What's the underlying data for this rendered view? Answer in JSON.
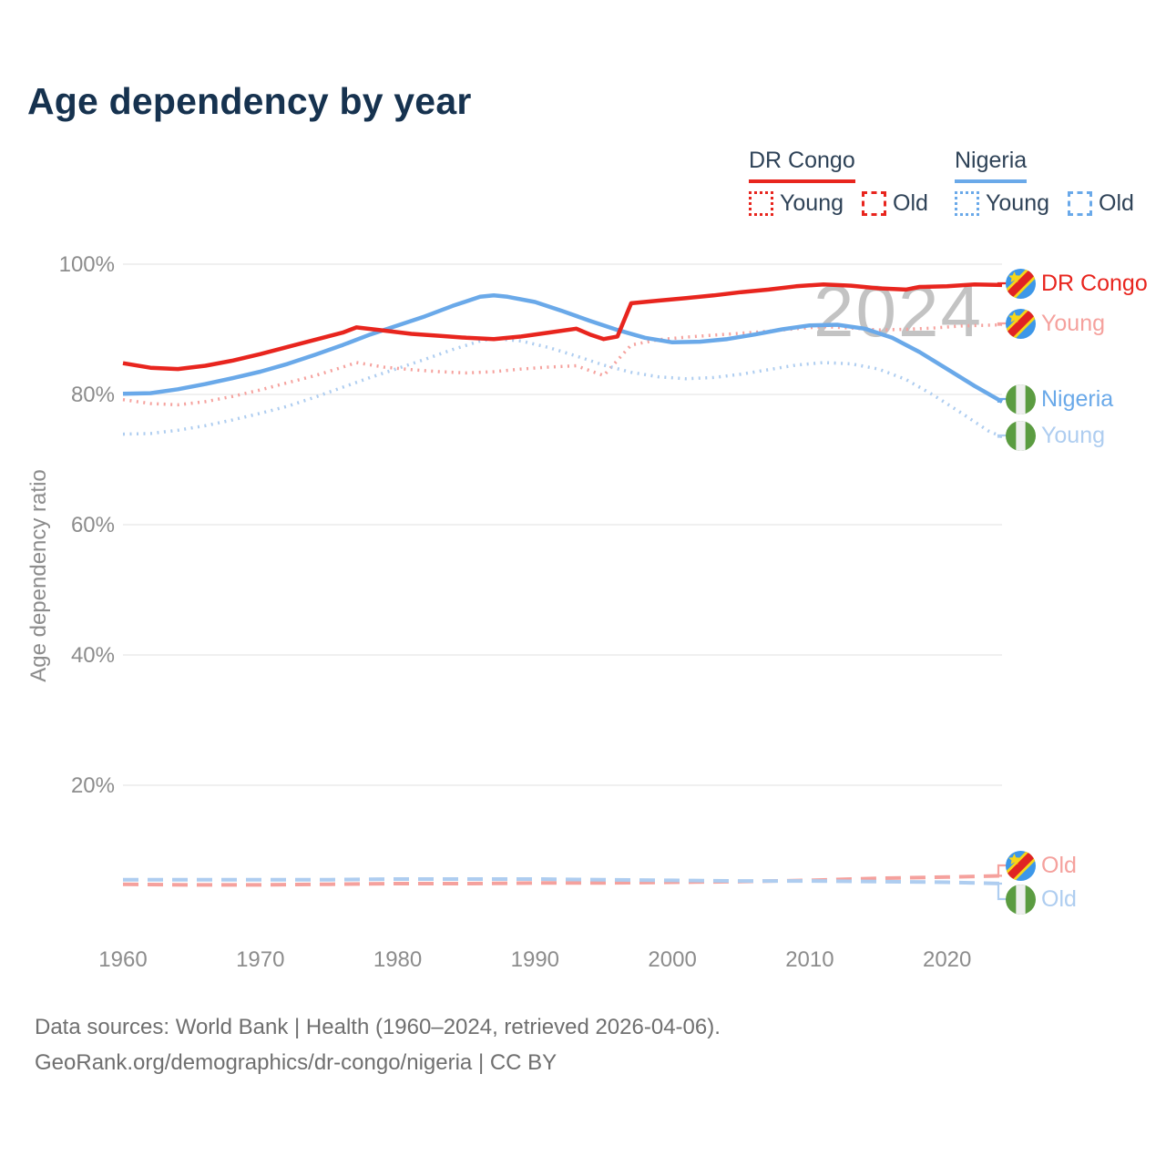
{
  "title": "Age dependency by year",
  "watermark": "2024",
  "colors": {
    "drc_solid": "#e8251e",
    "drc_light": "#f5a19d",
    "nigeria_solid": "#6aa9e9",
    "nigeria_light": "#aecdf0",
    "axis_text": "#8c8c8c",
    "gridline": "#ebebeb",
    "title_text": "#16324f",
    "legend_text": "#2e4257",
    "watermark_text": "#c3c3c3",
    "footer_text": "#6f6f6f"
  },
  "legend": {
    "groups": [
      {
        "name": "DR Congo",
        "color": "#e8251e",
        "items": [
          {
            "label": "Young",
            "style": "dotted"
          },
          {
            "label": "Old",
            "style": "dashed"
          }
        ]
      },
      {
        "name": "Nigeria",
        "color": "#6aa9e9",
        "items": [
          {
            "label": "Young",
            "style": "dotted"
          },
          {
            "label": "Old",
            "style": "dashed"
          }
        ]
      }
    ]
  },
  "right_labels": [
    {
      "label": "DR Congo",
      "flag": "dr-congo",
      "color": "#e8251e"
    },
    {
      "label": "Young",
      "flag": "dr-congo",
      "color": "#f5a19d"
    },
    {
      "label": "Nigeria",
      "flag": "nigeria",
      "color": "#6aa9e9"
    },
    {
      "label": "Young",
      "flag": "nigeria",
      "color": "#aecdf0"
    },
    {
      "label": "Old",
      "flag": "dr-congo",
      "color": "#f5a19d"
    },
    {
      "label": "Old",
      "flag": "nigeria",
      "color": "#aecdf0"
    }
  ],
  "footer": {
    "line1": "Data sources: World Bank | Health (1960–2024, retrieved 2026-04-06).",
    "line2": "GeoRank.org/demographics/dr-congo/nigeria | CC BY"
  },
  "chart_data": {
    "type": "line",
    "title": "Age dependency by year",
    "xlabel": "",
    "ylabel": "Age dependency ratio",
    "xlim": [
      1960,
      2024
    ],
    "ylim": [
      0,
      100
    ],
    "xticks": [
      1960,
      1970,
      1980,
      1990,
      2000,
      2010,
      2020
    ],
    "yticks": [
      20,
      40,
      60,
      80,
      100
    ],
    "ytick_suffix": "%",
    "grid": "horizontal",
    "legend_position": "top-right",
    "series": [
      {
        "id": "drc_young",
        "name": "DR Congo Young",
        "country": "DR Congo",
        "metric": "Young",
        "color": "#f5a19d",
        "line_style": "dotted",
        "width": 3.5,
        "points": [
          [
            1960,
            79.2
          ],
          [
            1962,
            78.6
          ],
          [
            1964,
            78.4
          ],
          [
            1966,
            78.9
          ],
          [
            1968,
            79.7
          ],
          [
            1970,
            80.7
          ],
          [
            1972,
            81.8
          ],
          [
            1974,
            82.9
          ],
          [
            1976,
            84.2
          ],
          [
            1977,
            84.9
          ],
          [
            1979,
            84.2
          ],
          [
            1981,
            83.8
          ],
          [
            1983,
            83.5
          ],
          [
            1985,
            83.3
          ],
          [
            1987,
            83.5
          ],
          [
            1989,
            83.9
          ],
          [
            1991,
            84.2
          ],
          [
            1993,
            84.4
          ],
          [
            1995,
            82.9
          ],
          [
            1997,
            87.6
          ],
          [
            1999,
            88.4
          ],
          [
            2001,
            88.8
          ],
          [
            2003,
            89.1
          ],
          [
            2005,
            89.4
          ],
          [
            2007,
            89.7
          ],
          [
            2009,
            90.1
          ],
          [
            2011,
            90.4
          ],
          [
            2013,
            90.2
          ],
          [
            2015,
            89.9
          ],
          [
            2017,
            90.0
          ],
          [
            2019,
            90.2
          ],
          [
            2021,
            90.5
          ],
          [
            2024,
            90.7
          ]
        ]
      },
      {
        "id": "nigeria_young",
        "name": "Nigeria Young",
        "country": "Nigeria",
        "metric": "Young",
        "color": "#aecdf0",
        "line_style": "dotted",
        "width": 3.5,
        "points": [
          [
            1960,
            73.9
          ],
          [
            1962,
            74.0
          ],
          [
            1964,
            74.5
          ],
          [
            1966,
            75.2
          ],
          [
            1968,
            76.1
          ],
          [
            1970,
            77.1
          ],
          [
            1972,
            78.2
          ],
          [
            1974,
            79.6
          ],
          [
            1976,
            81.1
          ],
          [
            1978,
            82.6
          ],
          [
            1980,
            84.0
          ],
          [
            1982,
            85.4
          ],
          [
            1984,
            86.9
          ],
          [
            1986,
            88.2
          ],
          [
            1987,
            88.6
          ],
          [
            1989,
            88.2
          ],
          [
            1991,
            87.2
          ],
          [
            1993,
            85.9
          ],
          [
            1995,
            84.5
          ],
          [
            1997,
            83.4
          ],
          [
            1999,
            82.7
          ],
          [
            2001,
            82.4
          ],
          [
            2003,
            82.6
          ],
          [
            2005,
            83.1
          ],
          [
            2007,
            83.8
          ],
          [
            2009,
            84.5
          ],
          [
            2011,
            84.9
          ],
          [
            2013,
            84.7
          ],
          [
            2015,
            83.9
          ],
          [
            2017,
            82.3
          ],
          [
            2019,
            79.9
          ],
          [
            2021,
            77.2
          ],
          [
            2023,
            74.4
          ],
          [
            2024,
            73.5
          ]
        ]
      },
      {
        "id": "drc_old",
        "name": "DR Congo Old",
        "country": "DR Congo",
        "metric": "Old",
        "color": "#f5a19d",
        "line_style": "dashed",
        "width": 4,
        "points": [
          [
            1960,
            4.8
          ],
          [
            1965,
            4.7
          ],
          [
            1970,
            4.7
          ],
          [
            1975,
            4.8
          ],
          [
            1980,
            4.9
          ],
          [
            1985,
            4.9
          ],
          [
            1990,
            5.0
          ],
          [
            1995,
            5.0
          ],
          [
            2000,
            5.1
          ],
          [
            2005,
            5.2
          ],
          [
            2010,
            5.4
          ],
          [
            2015,
            5.7
          ],
          [
            2020,
            5.9
          ],
          [
            2024,
            6.1
          ]
        ]
      },
      {
        "id": "nigeria_old",
        "name": "Nigeria Old",
        "country": "Nigeria",
        "metric": "Old",
        "color": "#aecdf0",
        "line_style": "dashed",
        "width": 4,
        "points": [
          [
            1960,
            5.5
          ],
          [
            1965,
            5.5
          ],
          [
            1970,
            5.5
          ],
          [
            1975,
            5.5
          ],
          [
            1980,
            5.6
          ],
          [
            1985,
            5.6
          ],
          [
            1990,
            5.6
          ],
          [
            1995,
            5.5
          ],
          [
            2000,
            5.4
          ],
          [
            2005,
            5.3
          ],
          [
            2010,
            5.3
          ],
          [
            2015,
            5.2
          ],
          [
            2020,
            5.1
          ],
          [
            2024,
            4.9
          ]
        ]
      },
      {
        "id": "nigeria_total",
        "name": "Nigeria",
        "country": "Nigeria",
        "metric": "Total",
        "color": "#6aa9e9",
        "line_style": "solid",
        "width": 4.5,
        "points": [
          [
            1960,
            80.1
          ],
          [
            1962,
            80.2
          ],
          [
            1964,
            80.8
          ],
          [
            1966,
            81.6
          ],
          [
            1968,
            82.5
          ],
          [
            1970,
            83.5
          ],
          [
            1972,
            84.7
          ],
          [
            1974,
            86.1
          ],
          [
            1976,
            87.6
          ],
          [
            1978,
            89.2
          ],
          [
            1980,
            90.6
          ],
          [
            1982,
            92.0
          ],
          [
            1984,
            93.6
          ],
          [
            1986,
            95.0
          ],
          [
            1987,
            95.2
          ],
          [
            1988,
            95.0
          ],
          [
            1990,
            94.2
          ],
          [
            1992,
            92.8
          ],
          [
            1994,
            91.3
          ],
          [
            1996,
            89.9
          ],
          [
            1998,
            88.7
          ],
          [
            2000,
            88.0
          ],
          [
            2002,
            88.1
          ],
          [
            2004,
            88.5
          ],
          [
            2006,
            89.2
          ],
          [
            2008,
            90.0
          ],
          [
            2010,
            90.6
          ],
          [
            2012,
            90.7
          ],
          [
            2014,
            90.1
          ],
          [
            2016,
            88.7
          ],
          [
            2018,
            86.5
          ],
          [
            2020,
            83.9
          ],
          [
            2022,
            81.3
          ],
          [
            2024,
            78.9
          ]
        ]
      },
      {
        "id": "drc_total",
        "name": "DR Congo",
        "country": "DR Congo",
        "metric": "Total",
        "color": "#e8251e",
        "line_style": "solid",
        "width": 4.5,
        "points": [
          [
            1960,
            84.8
          ],
          [
            1962,
            84.1
          ],
          [
            1964,
            83.9
          ],
          [
            1966,
            84.4
          ],
          [
            1968,
            85.2
          ],
          [
            1970,
            86.2
          ],
          [
            1972,
            87.3
          ],
          [
            1974,
            88.4
          ],
          [
            1976,
            89.5
          ],
          [
            1977,
            90.3
          ],
          [
            1979,
            89.8
          ],
          [
            1981,
            89.3
          ],
          [
            1983,
            89.0
          ],
          [
            1985,
            88.7
          ],
          [
            1987,
            88.5
          ],
          [
            1989,
            88.9
          ],
          [
            1991,
            89.5
          ],
          [
            1993,
            90.1
          ],
          [
            1994,
            89.2
          ],
          [
            1995,
            88.5
          ],
          [
            1996,
            88.9
          ],
          [
            1997,
            94.0
          ],
          [
            1999,
            94.4
          ],
          [
            2001,
            94.8
          ],
          [
            2003,
            95.2
          ],
          [
            2005,
            95.7
          ],
          [
            2007,
            96.1
          ],
          [
            2009,
            96.6
          ],
          [
            2011,
            96.9
          ],
          [
            2013,
            96.7
          ],
          [
            2015,
            96.3
          ],
          [
            2017,
            96.1
          ],
          [
            2018,
            96.5
          ],
          [
            2020,
            96.6
          ],
          [
            2022,
            96.9
          ],
          [
            2024,
            96.8
          ]
        ]
      }
    ]
  }
}
